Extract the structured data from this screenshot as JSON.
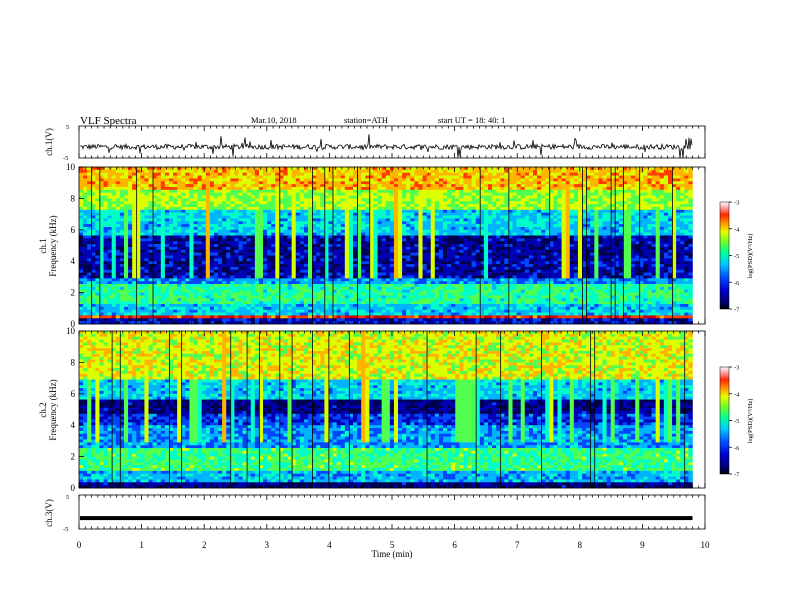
{
  "header": {
    "title": "VLF  Spectra",
    "date": "Mar.10, 2018",
    "station": "station=ATH",
    "start_ut": "start  UT  =   18: 40: 1"
  },
  "colors": {
    "scale": [
      "#000050",
      "#0000b4",
      "#0046ff",
      "#00b4ff",
      "#00ffc8",
      "#50ff50",
      "#dcff00",
      "#ffb400",
      "#ff3c00",
      "#c80000",
      "#ffb4b4",
      "#ffffff"
    ]
  },
  "chart_data": [
    {
      "type": "line",
      "name": "ch1-waveform",
      "ylabel": "ch.1(V)",
      "ylim": [
        -5,
        5
      ],
      "yticks": [
        "5",
        "-5"
      ],
      "baseline": -1.5,
      "x_end_min": 9.8,
      "xlim": [
        0,
        10
      ]
    },
    {
      "type": "heatmap",
      "name": "ch1-spectrogram",
      "ylabel_line1": "ch.1",
      "ylabel_line2": "Frequency  (kHz)",
      "ylim": [
        0,
        10
      ],
      "yticks": [
        "0",
        "2",
        "4",
        "6",
        "8",
        "10"
      ],
      "x_end_min": 9.8,
      "colorbar": {
        "label": "log(PSD)(V²/Hz)",
        "range": [
          -7,
          -3
        ],
        "ticks": [
          "-3",
          "-4",
          "-5",
          "-6",
          "-7"
        ]
      }
    },
    {
      "type": "heatmap",
      "name": "ch2-spectrogram",
      "ylabel_line1": "ch.2",
      "ylabel_line2": "Frequency  (kHz)",
      "ylim": [
        0,
        10
      ],
      "yticks": [
        "0",
        "2",
        "4",
        "6",
        "8",
        "10"
      ],
      "x_end_min": 9.8,
      "colorbar": {
        "label": "log(PSD)(V²/Hz)",
        "range": [
          -7,
          -3
        ],
        "ticks": [
          "-3",
          "-4",
          "-5",
          "-6",
          "-7"
        ]
      }
    },
    {
      "type": "line",
      "name": "ch3-waveform",
      "ylabel": "ch.3(V)",
      "ylim": [
        -5,
        5
      ],
      "yticks": [
        "5",
        "-5"
      ],
      "baseline": -1.8,
      "x_end_min": 9.8,
      "xlabel": "Time  (min)",
      "xticks": [
        "0",
        "1",
        "2",
        "3",
        "4",
        "5",
        "6",
        "7",
        "8",
        "9",
        "10"
      ],
      "xlim": [
        0,
        10
      ]
    }
  ]
}
